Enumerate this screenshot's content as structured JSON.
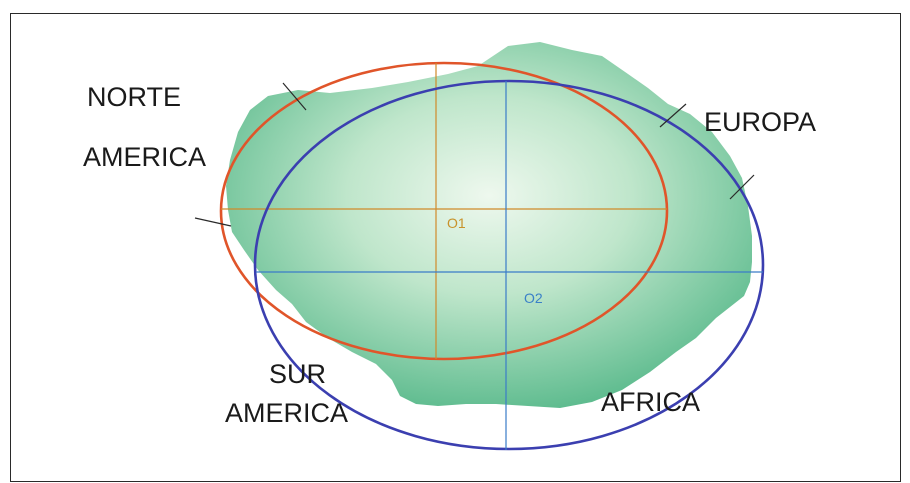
{
  "labels": {
    "north_america_line1": "NORTE",
    "north_america_line2": "AMERICA",
    "europe": "EUROPA",
    "south_america_line1": "SUR",
    "south_america_line2": "AMERICA",
    "africa": "AFRICA"
  },
  "centers": {
    "o1": "O1",
    "o2": "O2"
  },
  "colors": {
    "landmass_edge": "#5dbb8e",
    "landmass_center": "#eef8ee",
    "ellipse_o1": "#e0552a",
    "ellipse_o2": "#3b3fb0",
    "axes_o1": "#d08a2a",
    "axes_o2": "#3a7cc8",
    "label_o1": "#c8922a",
    "label_o2": "#3a80c8"
  }
}
